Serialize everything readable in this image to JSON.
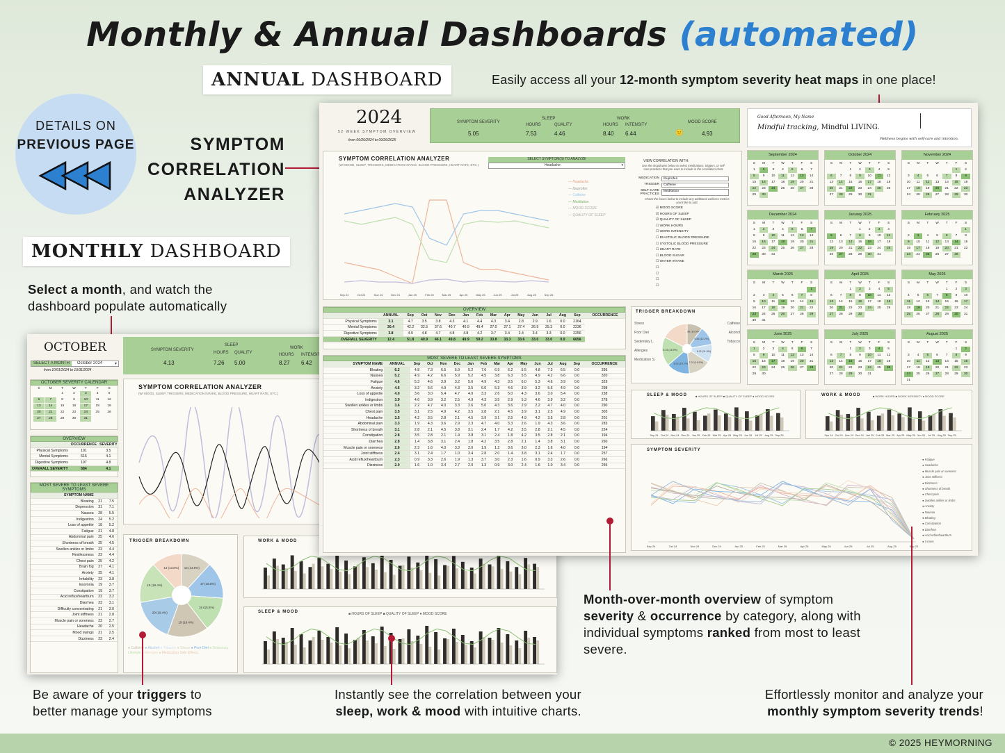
{
  "title": {
    "main": "Monthly & Annual Dashboards",
    "accent": "(automated)"
  },
  "tags": {
    "annual_bold": "ANNUAL",
    "annual_rest": "DASHBOARD",
    "monthly_bold": "MONTHLY",
    "monthly_rest": "DASHBOARD"
  },
  "badge": {
    "line1": "DETAILS ON",
    "line2": "PREVIOUS PAGE"
  },
  "callouts": {
    "symptom_analyzer": [
      "SYMPTOM",
      "CORRELATION",
      "ANALYZER"
    ],
    "heatmap_pre": "Easily access all your ",
    "heatmap_bold": "12-month symptom severity heat maps",
    "heatmap_post": " in one place!",
    "select_bold": "Select a month",
    "select_post": ", and watch the",
    "select_line2": "dashboard populate automatically",
    "mom_bold1": "Month-over-month overview",
    "mom_t1": " of symptom",
    "mom_bold2": "severity",
    "mom_t2": " & ",
    "mom_bold3": "occurrence",
    "mom_t3": " by category, along with",
    "mom_t4": "individual symptoms ",
    "mom_bold4": "ranked",
    "mom_t5": " from most to least",
    "mom_t6": "severe.",
    "trig_pre": "Be aware of your ",
    "trig_bold": "triggers",
    "trig_post": " to",
    "trig_line2": "better manage your symptoms",
    "sleep_line1": "Instantly see the correlation between your",
    "sleep_bold": "sleep, work & mood",
    "sleep_post": " with intuitive charts.",
    "trend_line1": "Effortlessly monitor and analyze your",
    "trend_bold": "monthly symptom severity trends",
    "trend_post": "!"
  },
  "footer": "© 2025 HEYMORNING",
  "annual": {
    "year": "2024",
    "subtitle": "52 WEEK SYMPTOM OVERVIEW",
    "range": "from 09/26/2024 to 09/26/2025",
    "metrics": {
      "sev_label": "SYMPTOM SEVERITY",
      "sev": "5.05",
      "sleep_label": "SLEEP",
      "hours_label": "HOURS",
      "hours": "7.53",
      "quality_label": "QUALITY",
      "quality": "4.46",
      "work_label": "WORK",
      "whours": "8.40",
      "intensity_label": "INTENSITY",
      "intensity": "6.44",
      "mood_label": "MOOD SCORE",
      "mood": "4.93"
    },
    "greeting": "Good Afternoon, My Name",
    "motto_i": "Mindful tracking,",
    "motto_r": " Mindful LIVING.",
    "motto_sub": "Wellness begins with self-care and intention.",
    "analyzer": {
      "title": "SYMPTOM CORRELATION ANALYZER",
      "sub": "(W/ MOOD, SLEEP, TRIGGERS, MEDICATION INTAKE, BLOOD PRESSURE, HEART RATE, ETC.)",
      "select_label": "SELECT SYMPTOM(S) TO ANALYZE",
      "select_value": "Headache",
      "legend": [
        "Headache",
        "Ibuprofen",
        "Caffeine",
        "Meditation",
        "MOOD SCORE",
        "QUALITY OF SLEEP"
      ],
      "view_label": "VIEW CORRELATION WITH:",
      "view_note": "Use the dropdowns below to select medications, triggers, or self-care practices that you want to include in the correlation chart.",
      "med_label": "MEDICATION",
      "med": "Ibuprofen",
      "trig_label": "TRIGGER",
      "trig": "Caffeine",
      "self_label": "SELF-CARE PRACTICES",
      "self": "Meditation",
      "check_note": "Check the boxes below to include any additional wellness metrics you'd like to add.",
      "checks": [
        "MOOD SCORE",
        "HOURS OF SLEEP",
        "QUALITY OF SLEEP",
        "WORK HOURS",
        "WORK INTENSITY",
        "DIASTOLIC BLOOD PRESSURE",
        "SYSTOLIC BLOOD PRESSURE",
        "HEART RATE",
        "BLOOD SUGAR",
        "WATER INTAKE"
      ],
      "xlabels": [
        "Sep 24",
        "Oct 24",
        "Nov 24",
        "Dec 24",
        "Jan 25",
        "Feb 25",
        "Mar 25",
        "Apr 25",
        "May 25",
        "Jun 25",
        "Jul 25",
        "Aug 25",
        "Sep 25"
      ]
    },
    "overview": {
      "title": "OVERVIEW",
      "cols": [
        "ANNUAL",
        "Sep",
        "Oct",
        "Nov",
        "Dec",
        "Jan",
        "Feb",
        "Mar",
        "Apr",
        "May",
        "Jun",
        "Jul",
        "Aug",
        "Sep",
        "OCCURRENCE"
      ],
      "rows": [
        [
          "Physical Symptoms",
          "3.1",
          "4.7",
          "3.5",
          "3.8",
          "4.3",
          "4.1",
          "4.4",
          "4.3",
          "3.4",
          "2.8",
          "2.9",
          "1.6",
          "0.0",
          "2164"
        ],
        [
          "Mental Symptoms",
          "30.4",
          "42.2",
          "32.5",
          "37.6",
          "40.7",
          "40.9",
          "49.4",
          "27.0",
          "27.1",
          "27.4",
          "26.9",
          "25.3",
          "0.0",
          "2236"
        ],
        [
          "Digestive Symptoms",
          "3.8",
          "4.9",
          "4.8",
          "4.7",
          "4.8",
          "4.8",
          "4.2",
          "3.7",
          "3.4",
          "2.4",
          "3.4",
          "3.3",
          "0.0",
          "2256"
        ],
        [
          "OVERALL SEVERITY",
          "12.4",
          "51.8",
          "40.9",
          "46.1",
          "49.8",
          "49.9",
          "59.2",
          "33.8",
          "33.3",
          "33.6",
          "33.0",
          "33.0",
          "0.0",
          "6656"
        ]
      ]
    },
    "severe": {
      "title": "MOST SEVERE TO LEAST SEVERE SYMPTOMS",
      "col0": "SYMPTOM NAME",
      "col_end": "OCCURRENCE",
      "rows": [
        [
          "Bloating",
          "6.2",
          "336"
        ],
        [
          "Nausea",
          "5.2",
          "320"
        ],
        [
          "Fatigue",
          "4.6",
          "329"
        ],
        [
          "Anxiety",
          "4.6",
          "298"
        ],
        [
          "Loss of appetite",
          "4.0",
          "238"
        ],
        [
          "Indigestion",
          "3.9",
          "278"
        ],
        [
          "Swollen ankles or limbs",
          "3.6",
          "290"
        ],
        [
          "Chest pain",
          "3.5",
          "303"
        ],
        [
          "Headache",
          "3.5",
          "201"
        ],
        [
          "Abdominal pain",
          "3.3",
          "283"
        ],
        [
          "Shortness of breath",
          "3.1",
          "224"
        ],
        [
          "Constipation",
          "2.8",
          "194"
        ],
        [
          "Diarrhea",
          "2.8",
          "260"
        ],
        [
          "Muscle pain or soreness",
          "2.6",
          "194"
        ],
        [
          "Joint stiffness",
          "2.4",
          "257"
        ],
        [
          "Acid reflux/heartburn",
          "2.3",
          "266"
        ],
        [
          "Dizziness",
          "2.0",
          "255"
        ]
      ]
    },
    "trigger": {
      "title": "TRIGGER BREAKDOWN",
      "labels": [
        "Caffeine",
        "Alcohol",
        "Tobacco",
        "Stress",
        "Poor Diet",
        "Sedentary L.",
        "Allergies",
        "Medication S."
      ],
      "slices": [
        {
          "label": "6.89 (10.0%)",
          "value": 10,
          "color": "#c9c1b0"
        },
        {
          "label": "6.36 (12.2%)",
          "value": 12.2,
          "color": "#9fc6e8"
        },
        {
          "label": "6.31 (11.9%)",
          "value": 11.9,
          "color": "#cfe2f2"
        },
        {
          "label": "7.03 (14.5%)",
          "value": 14.5,
          "color": "#d8d2c2"
        },
        {
          "label": "8.23 (15.1%)",
          "value": 15.1,
          "color": "#7fb4e0"
        },
        {
          "label": "8.15 (18.9%)",
          "value": 18.9,
          "color": "#bfe0b0"
        },
        {
          "label": "",
          "value": 17.4,
          "color": "#f3d9c8"
        }
      ]
    },
    "sleep_title": "SLEEP & MOOD",
    "work_title": "WORK & MOOD",
    "sleep_legend": [
      "HOURS OF SLEEP",
      "QUALITY OF SLEEP",
      "MOOD SCORE"
    ],
    "work_legend": [
      "WORK HOURS",
      "WORK INTENSITY",
      "MOOD SCORE"
    ],
    "months": [
      "Sep 24",
      "Oct 24",
      "Nov 24",
      "Dec 24",
      "Jan 25",
      "Feb 25",
      "Mar 25",
      "Apr 25",
      "May 25",
      "Jun 25",
      "Jul 25",
      "Aug 25",
      "Sep 25"
    ],
    "severity_title": "SYMPTOM SEVERITY",
    "severity_legend": [
      "Fatigue",
      "Headache",
      "Muscle pain or soreness",
      "Joint stiffness",
      "Dizziness",
      "Shortness of breath",
      "Chest pain",
      "Swollen ankles or limbs",
      "Anxiety",
      "Nausea",
      "Bloating",
      "Constipation",
      "Diarrhea",
      "Acid reflux/heartburn",
      "5 more"
    ],
    "calendars": [
      {
        "name": "September 2024",
        "start": 0,
        "days": 30
      },
      {
        "name": "October 2024",
        "start": 2,
        "days": 31
      },
      {
        "name": "November 2024",
        "start": 5,
        "days": 30
      },
      {
        "name": "December 2024",
        "start": 0,
        "days": 31
      },
      {
        "name": "January 2025",
        "start": 3,
        "days": 31
      },
      {
        "name": "February 2025",
        "start": 6,
        "days": 28
      },
      {
        "name": "March 2025",
        "start": 6,
        "days": 31
      },
      {
        "name": "April 2025",
        "start": 2,
        "days": 30
      },
      {
        "name": "May 2025",
        "start": 4,
        "days": 31
      },
      {
        "name": "June 2025",
        "start": 0,
        "days": 30
      },
      {
        "name": "July 2025",
        "start": 2,
        "days": 31
      },
      {
        "name": "August 2025",
        "start": 5,
        "days": 31
      }
    ],
    "dow": [
      "S",
      "M",
      "T",
      "W",
      "T",
      "F",
      "S"
    ]
  },
  "monthly": {
    "month": "OCTOBER",
    "select_label": "SELECT A MONTH",
    "select_value": "October 2024",
    "range": "from 10/01/2024 to 10/31/2024",
    "metrics": {
      "sev_label": "SYMPTOM SEVERITY",
      "sev": "4.13",
      "sleep_label": "SLEEP",
      "hours_label": "HOURS",
      "hours": "7.26",
      "quality_label": "QUALITY",
      "quality": "5.00",
      "work_label": "WORK",
      "whours": "8.27",
      "intensity_label": "INTENSITY",
      "intensity": "6.42"
    },
    "cal_title": "OCTOBER SEVERITY CALENDAR",
    "overview_title": "OVERVIEW",
    "ov_cols": [
      "OCCURRENCE",
      "SEVERITY"
    ],
    "ov_rows": [
      [
        "Physical Symptoms",
        "191",
        "3.5"
      ],
      [
        "Mental Symptoms",
        "616",
        "4.1"
      ],
      [
        "Digestive Symptoms",
        "197",
        "4.8"
      ],
      [
        "OVERALL SEVERITY",
        "584",
        "4.1"
      ]
    ],
    "severe_title": "MOST SEVERE TO LEAST SEVERE SYMPTOMS",
    "sev_col": "SYMPTOM NAME",
    "severe_rows": [
      [
        "Bloating",
        "21",
        "7.5"
      ],
      [
        "Depression",
        "31",
        "7.1"
      ],
      [
        "Nausea",
        "28",
        "5.5"
      ],
      [
        "Indigestion",
        "24",
        "5.2"
      ],
      [
        "Loss of appetite",
        "18",
        "5.2"
      ],
      [
        "Fatigue",
        "21",
        "4.8"
      ],
      [
        "Abdominal pain",
        "25",
        "4.6"
      ],
      [
        "Shortness of breath",
        "25",
        "4.5"
      ],
      [
        "Swollen ankles or limbs",
        "23",
        "4.4"
      ],
      [
        "Restlessness",
        "23",
        "4.4"
      ],
      [
        "Chest pain",
        "25",
        "4.2"
      ],
      [
        "Brain fog",
        "27",
        "4.1"
      ],
      [
        "Anxiety",
        "25",
        "4.1"
      ],
      [
        "Irritability",
        "23",
        "3.8"
      ],
      [
        "Insomnia",
        "19",
        "3.7"
      ],
      [
        "Constipation",
        "19",
        "3.7"
      ],
      [
        "Acid reflux/heartburn",
        "23",
        "3.2"
      ],
      [
        "Diarrhea",
        "23",
        "3.1"
      ],
      [
        "Difficulty concentrating",
        "21",
        "3.0"
      ],
      [
        "Joint stiffness",
        "21",
        "2.8"
      ],
      [
        "Muscle pain or soreness",
        "23",
        "2.7"
      ],
      [
        "Headache",
        "20",
        "2.5"
      ],
      [
        "Mood swings",
        "21",
        "2.5"
      ],
      [
        "Dizziness",
        "23",
        "2.4"
      ]
    ],
    "analyzer_title": "SYMPTOM CORRELATION ANALYZER",
    "analyzer_sub": "(W/ MOOD, SLEEP, TRIGGERS, MEDICATION INTAKE, BLOOD PRESSURE, HEART RATE, ETC.)",
    "trigger_title": "TRIGGER BREAKDOWN",
    "trigger_slices": [
      {
        "label": "14 (13.6%)",
        "value": 13.6,
        "color": "#d8d2c2"
      },
      {
        "label": "17 (16.5%)",
        "value": 16.5,
        "color": "#9fc6e8"
      },
      {
        "label": "16 (15.5%)",
        "value": 15.5,
        "color": "#bfe0b0"
      },
      {
        "label": "19 (18.4%)",
        "value": 18.4,
        "color": "#cfc7b4"
      },
      {
        "label": "20 (19.4%)",
        "value": 19.4,
        "color": "#a8cbe8"
      },
      {
        "label": "19 (18.4%)",
        "value": 18.4,
        "color": "#c8e3b8"
      },
      {
        "label": "14 (13.6%)",
        "value": 13.6,
        "color": "#f3d9c8"
      }
    ],
    "trigger_legend": [
      "Caffeine",
      "Alcohol",
      "Tobacco",
      "Stress",
      "Poor Diet",
      "Sedentary Lifestyle",
      "Allergies",
      "Medication Side Effects"
    ],
    "work_title": "WORK & MOOD",
    "sleep_title": "SLEEP & MOOD",
    "sleep_legend": [
      "HOURS OF SLEEP",
      "QUALITY OF SLEEP",
      "MOOD SCORE"
    ]
  }
}
